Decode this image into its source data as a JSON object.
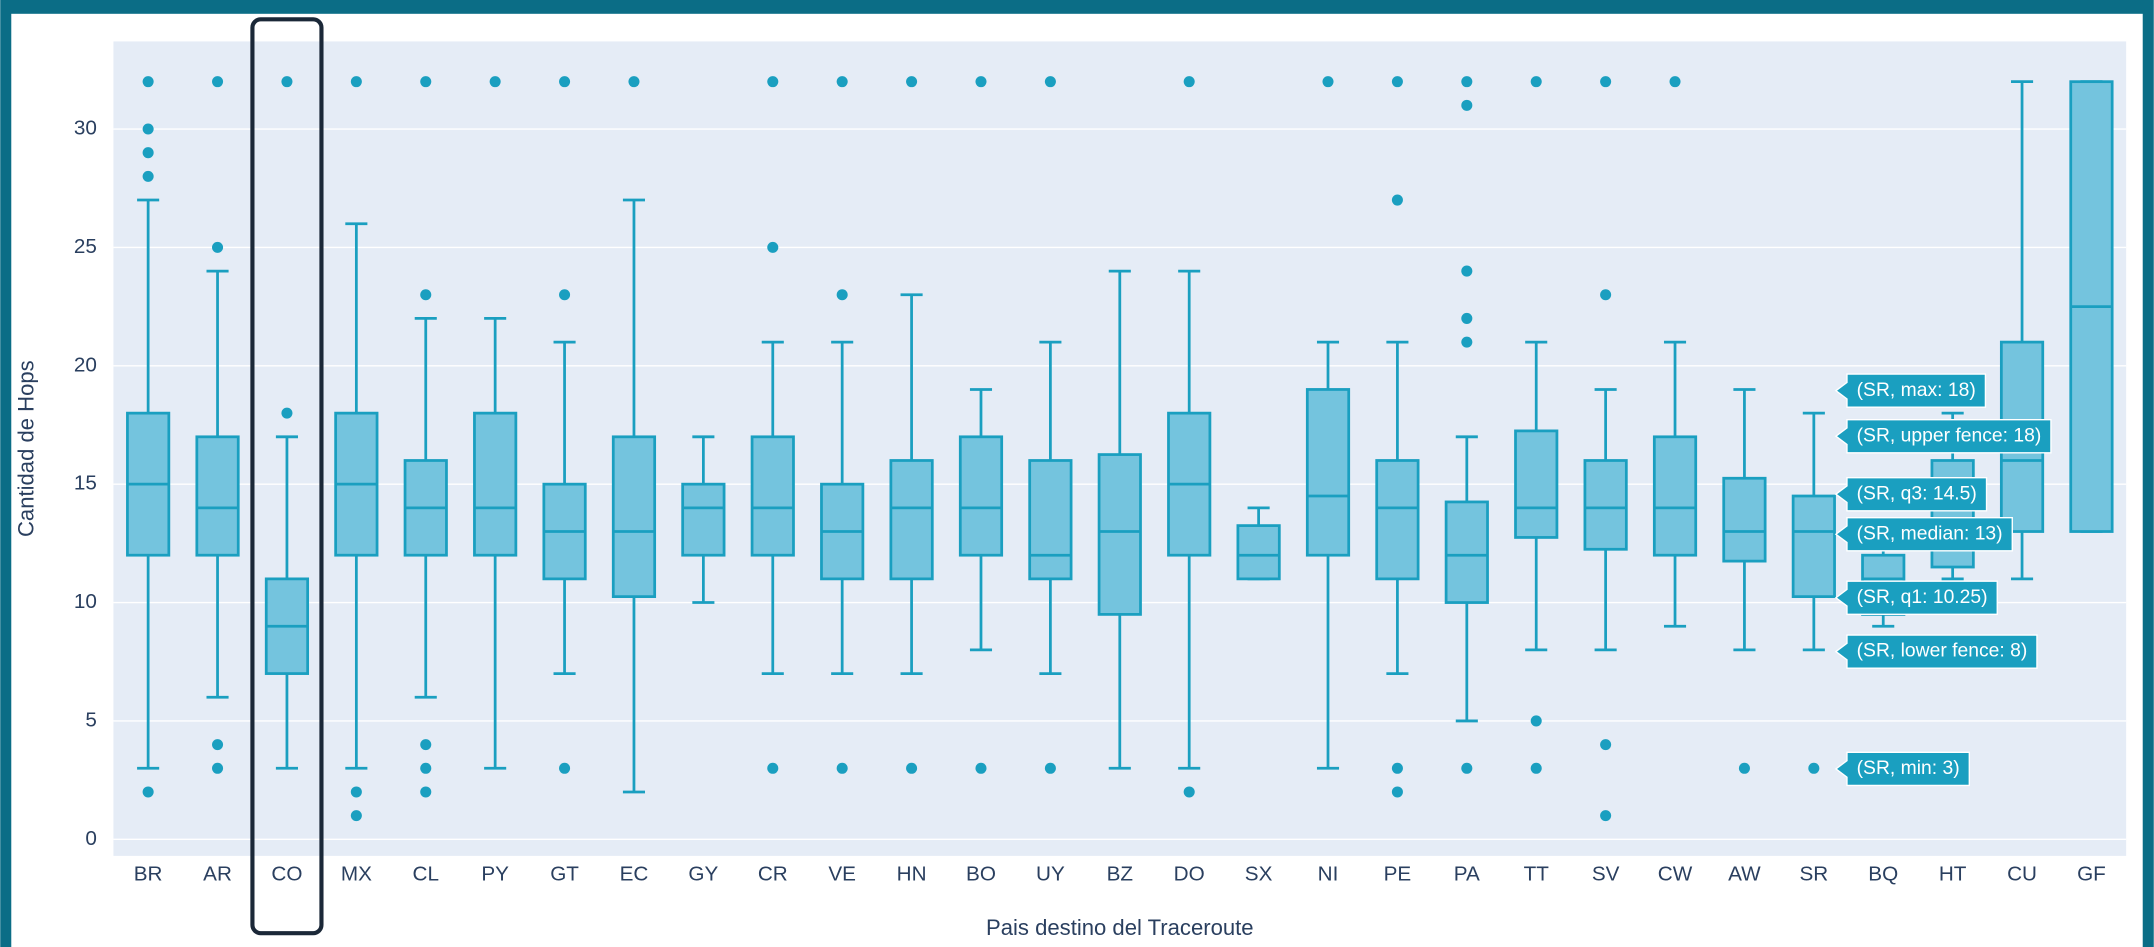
{
  "chart_data": {
    "type": "box",
    "y_label": "Cantidad de Hops",
    "x_label": "Pais destino del Traceroute",
    "categories": [
      "BR",
      "AR",
      "CO",
      "MX",
      "CL",
      "PY",
      "GT",
      "EC",
      "GY",
      "CR",
      "VE",
      "HN",
      "BO",
      "UY",
      "BZ",
      "DO",
      "SX",
      "NI",
      "PE",
      "PA",
      "TT",
      "SV",
      "CW",
      "AW",
      "SR",
      "BQ",
      "HT",
      "CU",
      "GF"
    ],
    "lowerfence": [
      3,
      6,
      3,
      3,
      6,
      3,
      7,
      2,
      10,
      7,
      7,
      7,
      8,
      7,
      3,
      3,
      11,
      3,
      7,
      5,
      8,
      8,
      9,
      8,
      8,
      9,
      11,
      11,
      13
    ],
    "q1": [
      12,
      12,
      7,
      12,
      12,
      12,
      11,
      10.25,
      12,
      12,
      11,
      11,
      12,
      11,
      9.5,
      12,
      11,
      12,
      11,
      10,
      12.75,
      12.25,
      12,
      11.75,
      10.25,
      9.5,
      11.5,
      13,
      13
    ],
    "median": [
      15,
      14,
      9,
      15,
      14,
      14,
      13,
      13,
      14,
      14,
      13,
      14,
      14,
      12,
      13,
      15,
      12,
      14.5,
      14,
      12,
      14,
      14,
      14,
      13,
      13,
      11,
      13,
      16,
      22.5
    ],
    "q3": [
      18,
      17,
      11,
      18,
      16,
      18,
      15,
      17,
      15,
      17,
      15,
      16,
      17,
      16,
      16.25,
      18,
      13.25,
      19,
      16,
      14.25,
      17.25,
      16,
      17,
      15.25,
      14.5,
      12,
      16,
      21,
      32
    ],
    "upperfence": [
      27,
      24,
      17,
      26,
      22,
      22,
      21,
      27,
      17,
      21,
      21,
      23,
      19,
      21,
      24,
      24,
      14,
      21,
      21,
      17,
      21,
      19,
      21,
      19,
      18,
      13,
      18,
      32,
      32
    ],
    "outliers": [
      [
        2,
        28,
        29,
        30,
        32
      ],
      [
        3,
        4,
        25,
        32
      ],
      [
        18,
        32
      ],
      [
        1,
        2,
        32
      ],
      [
        2,
        3,
        4,
        23,
        32
      ],
      [
        32
      ],
      [
        3,
        23,
        32
      ],
      [
        32
      ],
      [],
      [
        3,
        25,
        32
      ],
      [
        3,
        23,
        32
      ],
      [
        3,
        32
      ],
      [
        3,
        32
      ],
      [
        3,
        32
      ],
      [],
      [
        2,
        32
      ],
      [],
      [
        32
      ],
      [
        2,
        3,
        27,
        32
      ],
      [
        3,
        21,
        22,
        24,
        31,
        32
      ],
      [
        3,
        5,
        32
      ],
      [
        1,
        4,
        23,
        32
      ],
      [
        32
      ],
      [
        3
      ],
      [
        3
      ],
      [],
      [],
      [],
      []
    ],
    "color": "#1a9fc0",
    "fill": "#74c4de",
    "ylim": [
      -0.7,
      33.7
    ],
    "yticks": [
      0,
      5,
      10,
      15,
      20,
      25,
      30
    ],
    "grid": true,
    "hover_labels": [
      "(SR, max: 18)",
      "(SR, upper fence: 18)",
      "(SR, q3: 14.5)",
      "(SR, median: 13)",
      "(SR, q1: 10.25)",
      "(SR, lower fence: 8)",
      "(SR, min: 3)"
    ]
  }
}
